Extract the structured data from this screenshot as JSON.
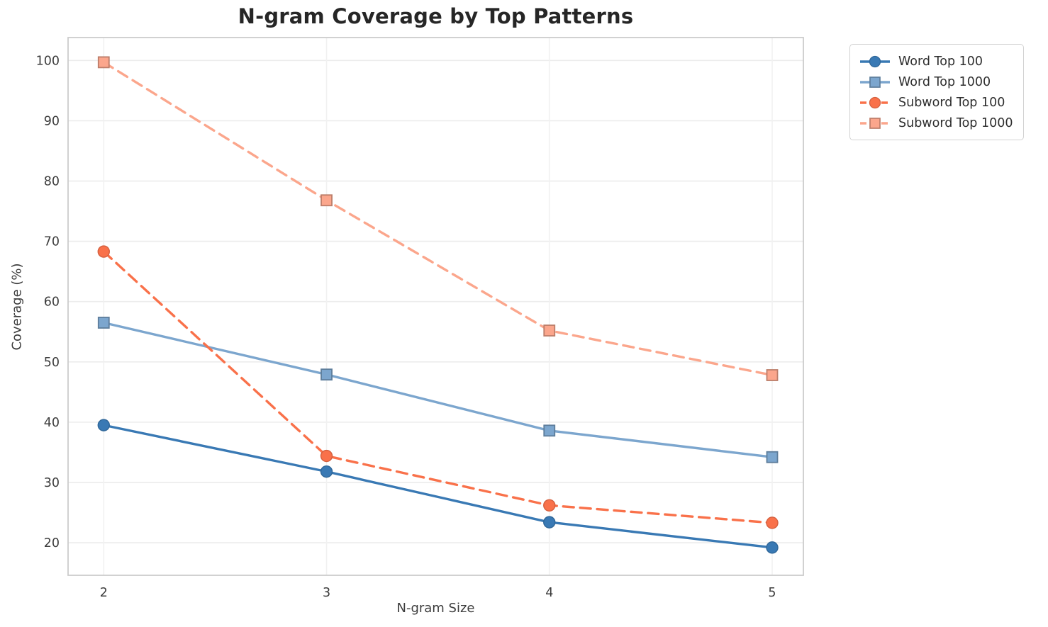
{
  "chart_data": {
    "type": "line",
    "title": "N-gram Coverage by Top Patterns",
    "xlabel": "N-gram Size",
    "ylabel": "Coverage (%)",
    "x": [
      2,
      3,
      4,
      5
    ],
    "xticks": [
      2,
      3,
      4,
      5
    ],
    "yticks": [
      20,
      30,
      40,
      50,
      60,
      70,
      80,
      90,
      100
    ],
    "xlim": [
      1.84,
      5.14
    ],
    "ylim": [
      14.6,
      103.8
    ],
    "grid": true,
    "legend_position": "outside-top-right",
    "series": [
      {
        "name": "Word Top 100",
        "values": [
          39.5,
          31.8,
          23.4,
          19.2
        ],
        "color": "#3979b4",
        "line_style": "solid",
        "marker": "circle"
      },
      {
        "name": "Word Top 1000",
        "values": [
          56.5,
          47.9,
          38.6,
          34.2
        ],
        "color": "#7ca6ce",
        "line_style": "solid",
        "marker": "square"
      },
      {
        "name": "Subword Top 100",
        "values": [
          68.3,
          34.4,
          26.2,
          23.3
        ],
        "color": "#f9714a",
        "line_style": "dashed",
        "marker": "circle"
      },
      {
        "name": "Subword Top 1000",
        "values": [
          99.7,
          76.8,
          55.2,
          47.8
        ],
        "color": "#fba68c",
        "line_style": "dashed",
        "marker": "square"
      }
    ],
    "style": {
      "grid_color": "#ececec",
      "spine_color": "#cccccc",
      "background": "#ffffff"
    }
  }
}
